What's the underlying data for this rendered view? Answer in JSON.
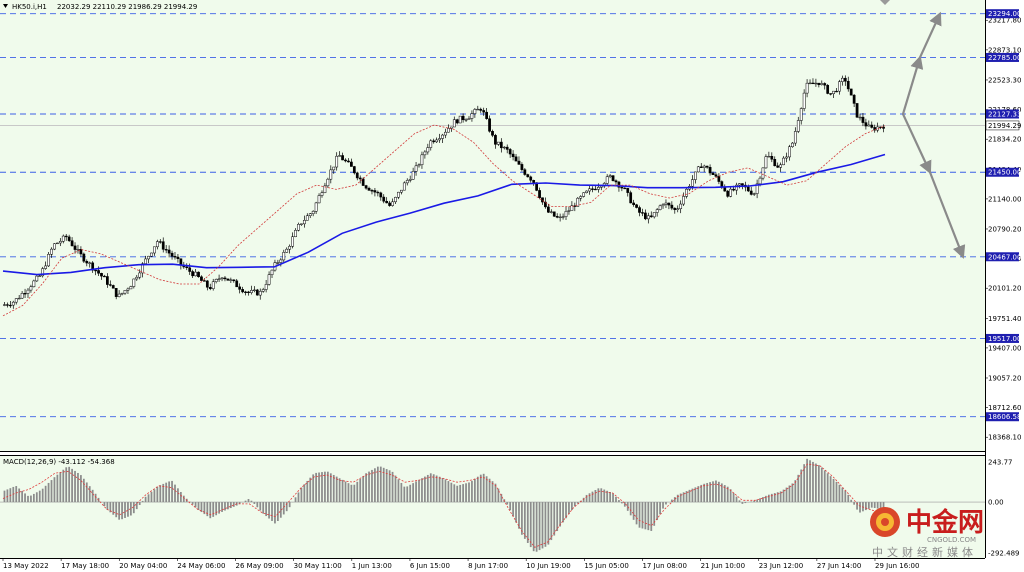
{
  "header": {
    "symbol": "HK50.i,H1",
    "ohlc": "22032.29 22110.29 21986.29 21994.29"
  },
  "macd_header": "MACD(12,26,9) -43.112 -54.368",
  "colors": {
    "background": "#f0fbec",
    "candle": "#000000",
    "ma_long": "#1a1ae6",
    "ma_short": "#d23a3a",
    "level_line": "#3b5fe6",
    "level_label_bg": "#1f1fb0",
    "macd_hist": "#8c8c8c",
    "macd_signal": "#e03a3a",
    "arrow": "#8a8a8a"
  },
  "watermark": {
    "brand": "中金网",
    "url": "CNGOLD.COM",
    "tagline": "中文财经新媒体"
  },
  "chart_data": {
    "type": "candlestick",
    "symbol": "HK50.i",
    "timeframe": "H1",
    "y_range": [
      18208,
      23430
    ],
    "price_ticks": [
      "23217.80",
      "22873.10",
      "22523.30",
      "22178.60",
      "21834.20",
      "21484.40",
      "21140.00",
      "20790.20",
      "20445.80",
      "20101.20",
      "19751.40",
      "19407.00",
      "19057.20",
      "18712.60",
      "18368.10"
    ],
    "levels": [
      {
        "price": 23294.0,
        "label": "23294.00"
      },
      {
        "price": 22785.0,
        "label": "22785.00"
      },
      {
        "price": 22127.33,
        "label": "22127.33"
      },
      {
        "price": 21450.0,
        "label": "21450.00"
      },
      {
        "price": 20467.0,
        "label": "20467.00"
      },
      {
        "price": 19517.0,
        "label": "19517.00"
      },
      {
        "price": 18606.58,
        "label": "18606.58"
      }
    ],
    "current_price": {
      "price": 21994.29,
      "label": "21994.29"
    },
    "time_labels": [
      "13 May 2022",
      "17 May 18:00",
      "20 May 04:00",
      "24 May 06:00",
      "26 May 09:00",
      "30 May 11:00",
      "1 Jun 13:00",
      "6 Jun 15:00",
      "8 Jun 17:00",
      "10 Jun 19:00",
      "15 Jun 05:00",
      "17 Jun 08:00",
      "21 Jun 10:00",
      "23 Jun 12:00",
      "27 Jun 14:00",
      "29 Jun 16:00"
    ],
    "close_path": [
      19900,
      19950,
      20100,
      20250,
      20600,
      20700,
      20500,
      20350,
      20200,
      20000,
      20150,
      20400,
      20650,
      20500,
      20350,
      20250,
      20100,
      20250,
      20150,
      20050,
      20050,
      20350,
      20550,
      20850,
      21000,
      21350,
      21650,
      21500,
      21300,
      21200,
      21050,
      21300,
      21500,
      21800,
      21900,
      22050,
      22100,
      22200,
      21800,
      21700,
      21500,
      21350,
      21000,
      20900,
      21050,
      21200,
      21300,
      21400,
      21250,
      21000,
      20900,
      21100,
      21000,
      21300,
      21550,
      21400,
      21200,
      21300,
      21200,
      21650,
      21500,
      21800,
      22450,
      22500,
      22350,
      22550,
      22100,
      21950,
      21994.29
    ],
    "ma_long_path": [
      20300,
      20260,
      20285,
      20340,
      20375,
      20380,
      20340,
      20345,
      20350,
      20520,
      20740,
      20870,
      20975,
      21090,
      21175,
      21310,
      21325,
      21300,
      21295,
      21270,
      21270,
      21275,
      21290,
      21340,
      21450,
      21540,
      21656
    ],
    "ma_short_path": [
      19780,
      19900,
      20150,
      20450,
      20550,
      20500,
      20400,
      20300,
      20200,
      20150,
      20150,
      20350,
      20600,
      20800,
      21000,
      21200,
      21300,
      21250,
      21300,
      21500,
      21700,
      21900,
      22000,
      21950,
      21800,
      21550,
      21350,
      21200,
      21050,
      21050,
      21100,
      21300,
      21300,
      21200,
      21150,
      21200,
      21350,
      21450,
      21500,
      21400,
      21300,
      21350,
      21550,
      21750,
      21900,
      21990
    ],
    "projection": {
      "origin_price": 22127,
      "up_targets": [
        22785,
        23294
      ],
      "down_targets": [
        21450,
        20467
      ]
    },
    "macd": {
      "params": "12,26,9",
      "main": -43.112,
      "signal": -54.368,
      "y_ticks": [
        "243.77",
        "0.00",
        "-292.489"
      ],
      "y_range": [
        -292.489,
        243.77
      ],
      "hist_path": [
        60,
        90,
        30,
        70,
        140,
        200,
        150,
        60,
        -40,
        -100,
        -70,
        30,
        90,
        120,
        30,
        -40,
        -90,
        -50,
        -20,
        20,
        -60,
        -120,
        -40,
        80,
        160,
        170,
        130,
        90,
        160,
        200,
        170,
        80,
        120,
        160,
        130,
        90,
        110,
        160,
        100,
        -30,
        -180,
        -280,
        -240,
        -130,
        -30,
        40,
        80,
        50,
        -30,
        -140,
        -160,
        -20,
        40,
        70,
        100,
        120,
        80,
        -10,
        10,
        40,
        60,
        110,
        240,
        200,
        130,
        60,
        -60,
        -30,
        -43
      ],
      "signal_path": [
        20,
        50,
        70,
        110,
        160,
        170,
        120,
        40,
        -40,
        -70,
        -30,
        40,
        90,
        80,
        20,
        -40,
        -70,
        -40,
        -10,
        -10,
        -60,
        -80,
        0,
        80,
        140,
        150,
        120,
        110,
        150,
        170,
        150,
        110,
        120,
        140,
        130,
        110,
        120,
        140,
        90,
        -40,
        -160,
        -250,
        -220,
        -120,
        -30,
        30,
        60,
        50,
        -10,
        -100,
        -130,
        -40,
        30,
        60,
        90,
        100,
        70,
        10,
        10,
        30,
        50,
        100,
        210,
        200,
        140,
        60,
        -20,
        -45,
        -54
      ]
    }
  }
}
